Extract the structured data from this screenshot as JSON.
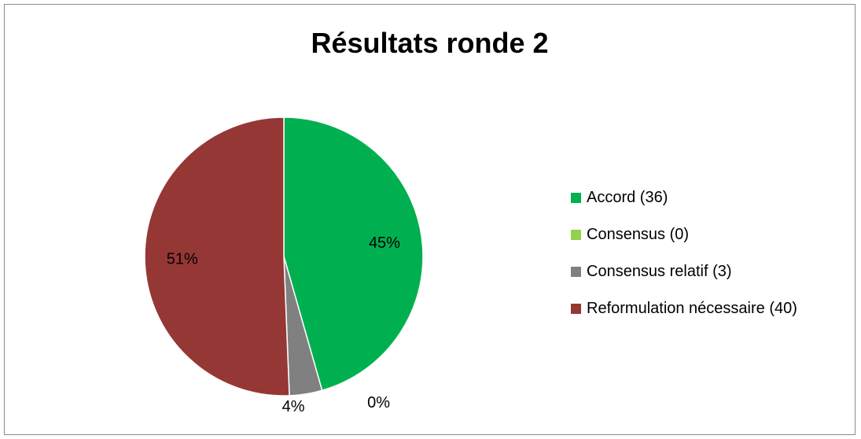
{
  "chart_data": {
    "type": "pie",
    "title": "Résultats ronde 2",
    "categories": [
      "Accord (36)",
      "Consensus (0)",
      "Consensus relatif (3)",
      "Reformulation nécessaire (40)"
    ],
    "values": [
      36,
      0,
      3,
      40
    ],
    "percent_labels": [
      "45%",
      "0%",
      "4%",
      "51%"
    ],
    "colors": [
      "#00b050",
      "#92d050",
      "#808080",
      "#953735"
    ],
    "legend_position": "right"
  }
}
